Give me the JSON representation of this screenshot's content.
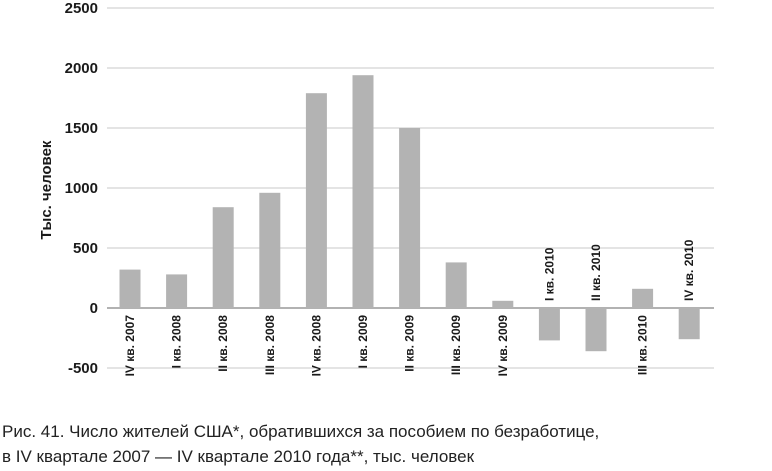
{
  "chart_data": {
    "type": "bar",
    "title": "",
    "xlabel": "",
    "ylabel": "Тыс. человек",
    "ylim": [
      -500,
      2500
    ],
    "yticks": [
      2500,
      2000,
      1500,
      1000,
      500,
      0,
      -500
    ],
    "grid": true,
    "categories": [
      "IV кв. 2007",
      "I кв. 2008",
      "II кв. 2008",
      "III кв. 2008",
      "IV кв. 2008",
      "I кв. 2009",
      "II кв. 2009",
      "III кв. 2009",
      "IV кв. 2009",
      "I кв. 2010",
      "II кв. 2010",
      "III кв. 2010",
      "IV кв. 2010"
    ],
    "values": [
      320,
      280,
      840,
      960,
      1790,
      1940,
      1500,
      380,
      60,
      -270,
      -360,
      160,
      -260
    ],
    "bar_color": "#b3b3b3",
    "grid_color": "#b8b8b8"
  },
  "caption": {
    "line1": "Рис. 41. Число жителей США*, обратившихся за пособием по безработице,",
    "line2": "в IV квартале 2007 — IV квартале 2010 года**, тыс. человек"
  }
}
